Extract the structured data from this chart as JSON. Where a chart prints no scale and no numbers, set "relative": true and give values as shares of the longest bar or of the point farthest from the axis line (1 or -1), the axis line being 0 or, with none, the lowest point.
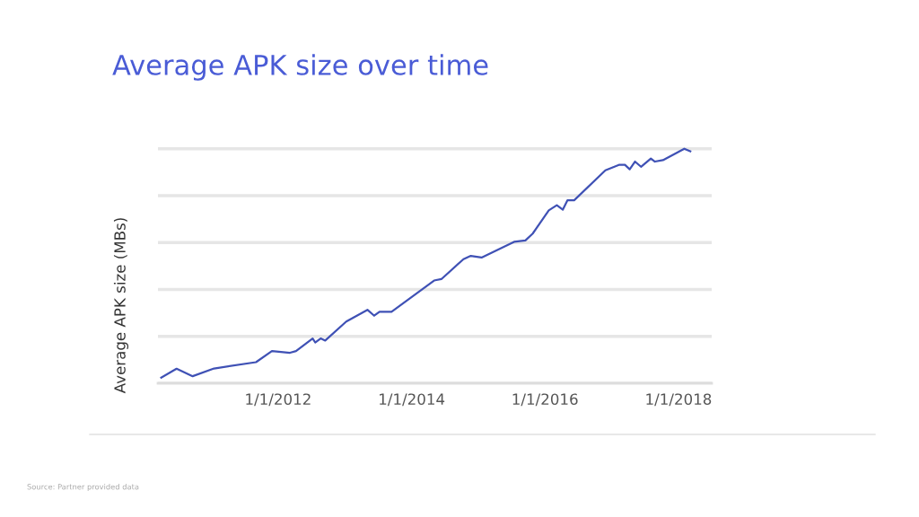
{
  "chart_data": {
    "type": "line",
    "title": "Average APK size over time",
    "ylabel": "Average APK size (MBs)",
    "relative": true,
    "x": [
      "2010-04-01",
      "2010-06-24",
      "2010-09-20",
      "2011-01-15",
      "2011-09-02",
      "2011-11-28",
      "2012-03-06",
      "2012-04-08",
      "2012-07-08",
      "2012-07-22",
      "2012-08-21",
      "2012-09-15",
      "2013-01-08",
      "2013-05-04",
      "2013-06-10",
      "2013-07-09",
      "2013-09-13",
      "2014-05-04",
      "2014-06-13",
      "2014-10-12",
      "2014-11-21",
      "2015-01-19",
      "2015-07-16",
      "2015-09-16",
      "2015-10-26",
      "2016-01-22",
      "2016-03-06",
      "2016-04-08",
      "2016-05-03",
      "2016-06-09",
      "2016-11-27",
      "2017-02-09",
      "2017-03-14",
      "2017-04-09",
      "2017-05-08",
      "2017-06-10",
      "2017-08-03",
      "2017-08-25",
      "2017-10-08",
      "2018-02-02",
      "2018-03-07"
    ],
    "series": [
      {
        "color": "#3f51b5",
        "values": [
          0.024,
          0.062,
          0.03,
          0.063,
          0.09,
          0.137,
          0.13,
          0.137,
          0.191,
          0.174,
          0.191,
          0.182,
          0.263,
          0.313,
          0.288,
          0.305,
          0.305,
          0.438,
          0.444,
          0.529,
          0.543,
          0.536,
          0.603,
          0.609,
          0.638,
          0.737,
          0.759,
          0.74,
          0.78,
          0.78,
          0.908,
          0.931,
          0.931,
          0.912,
          0.945,
          0.923,
          0.958,
          0.945,
          0.951,
          1.0,
          0.989
        ]
      }
    ],
    "xlim": [
      "2010-03-14",
      "2018-07-02"
    ],
    "xticks": [
      {
        "value": "2012-01-01",
        "label": "1/1/2012"
      },
      {
        "value": "2014-01-01",
        "label": "1/1/2014"
      },
      {
        "value": "2016-01-01",
        "label": "1/1/2016"
      },
      {
        "value": "2018-01-01",
        "label": "1/1/2018"
      }
    ],
    "grid": "y",
    "marker": "none",
    "line_style": "solid",
    "tick_labels": "x",
    "annotations": [
      "Source: Partner provided data"
    ]
  }
}
